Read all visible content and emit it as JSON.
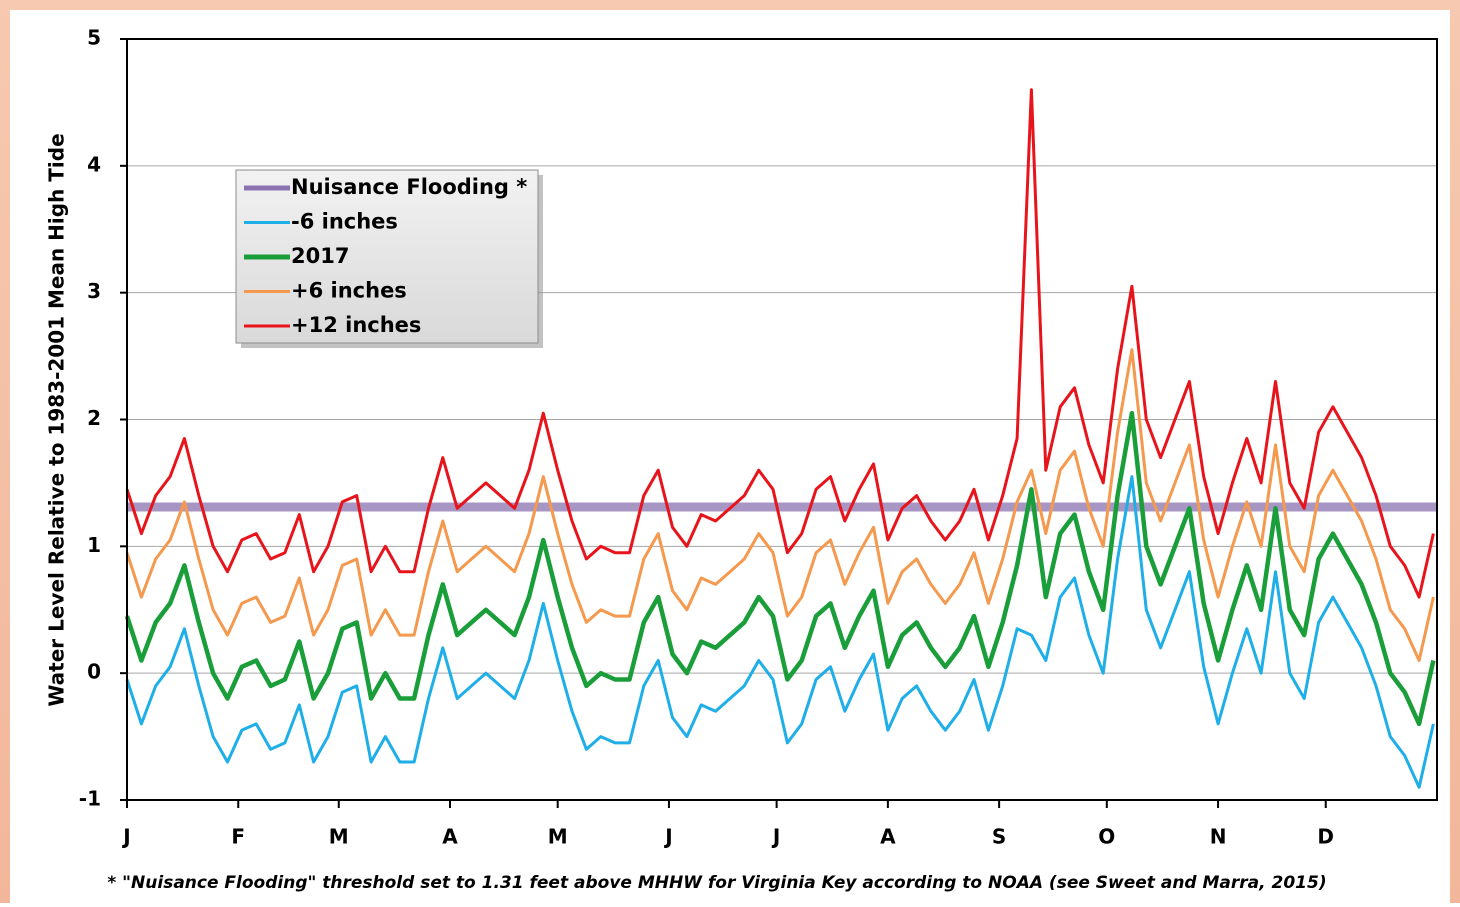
{
  "chart_data": {
    "type": "line",
    "y_label": "Water Level Relative to 1983-2001 Mean High Tide",
    "footnote": "* \"Nuisance Flooding\" threshold set to 1.31 feet above MHHW for Virginia Key according to NOAA (see Sweet and Marra, 2015)",
    "xlim": [
      1,
      366
    ],
    "xticks": [
      {
        "value": 1,
        "label": "J"
      },
      {
        "value": 32,
        "label": "F"
      },
      {
        "value": 60,
        "label": "M"
      },
      {
        "value": 91,
        "label": "A"
      },
      {
        "value": 121,
        "label": "M"
      },
      {
        "value": 152,
        "label": "J"
      },
      {
        "value": 182,
        "label": "J"
      },
      {
        "value": 213,
        "label": "A"
      },
      {
        "value": 244,
        "label": "S"
      },
      {
        "value": 274,
        "label": "O"
      },
      {
        "value": 305,
        "label": "N"
      },
      {
        "value": 335,
        "label": "D"
      }
    ],
    "ylim": [
      -1,
      5
    ],
    "yticks": [
      -1,
      0,
      1,
      2,
      3,
      4,
      5
    ],
    "grid": true,
    "legend": "upper left",
    "threshold": {
      "name": "Nuisance Flooding *",
      "value": 1.31,
      "color": "#8a73b0"
    },
    "x": [
      1,
      5,
      9,
      13,
      17,
      21,
      25,
      29,
      33,
      37,
      41,
      45,
      49,
      53,
      57,
      61,
      65,
      69,
      73,
      77,
      81,
      85,
      89,
      93,
      97,
      101,
      105,
      109,
      113,
      117,
      121,
      125,
      129,
      133,
      137,
      141,
      145,
      149,
      153,
      157,
      161,
      165,
      169,
      173,
      177,
      181,
      185,
      189,
      193,
      197,
      201,
      205,
      209,
      213,
      217,
      221,
      225,
      229,
      233,
      237,
      241,
      245,
      249,
      253,
      257,
      261,
      265,
      269,
      273,
      277,
      281,
      285,
      289,
      293,
      297,
      301,
      305,
      309,
      313,
      317,
      321,
      325,
      329,
      333,
      337,
      341,
      345,
      349,
      353,
      357,
      361,
      365
    ],
    "series": [
      {
        "name": "-6 inches",
        "color": "#1eaee8",
        "values": [
          -0.05,
          -0.4,
          -0.1,
          0.05,
          0.35,
          -0.1,
          -0.5,
          -0.7,
          -0.45,
          -0.4,
          -0.6,
          -0.55,
          -0.25,
          -0.7,
          -0.5,
          -0.15,
          -0.1,
          -0.7,
          -0.5,
          -0.7,
          -0.7,
          -0.2,
          0.2,
          -0.2,
          -0.1,
          0,
          -0.1,
          -0.2,
          0.1,
          0.55,
          0.1,
          -0.3,
          -0.6,
          -0.5,
          -0.55,
          -0.55,
          -0.1,
          0.1,
          -0.35,
          -0.5,
          -0.25,
          -0.3,
          -0.2,
          -0.1,
          0.1,
          -0.05,
          -0.55,
          -0.4,
          -0.05,
          0.05,
          -0.3,
          -0.05,
          0.15,
          -0.45,
          -0.2,
          -0.1,
          -0.3,
          -0.45,
          -0.3,
          -0.05,
          -0.45,
          -0.1,
          0.35,
          0.3,
          0.1,
          0.6,
          0.75,
          0.3,
          0,
          0.9,
          1.55,
          0.5,
          0.2,
          0.5,
          0.8,
          0.05,
          -0.4,
          0,
          0.35,
          0,
          0.8,
          0,
          -0.2,
          0.4,
          0.6,
          0.4,
          0.2,
          -0.1,
          -0.5,
          -0.65,
          -0.9,
          -0.4
        ]
      },
      {
        "name": "2017",
        "color": "#1a9e3a",
        "values": [
          0.45,
          0.1,
          0.4,
          0.55,
          0.85,
          0.4,
          0,
          -0.2,
          0.05,
          0.1,
          -0.1,
          -0.05,
          0.25,
          -0.2,
          0,
          0.35,
          0.4,
          -0.2,
          0,
          -0.2,
          -0.2,
          0.3,
          0.7,
          0.3,
          0.4,
          0.5,
          0.4,
          0.3,
          0.6,
          1.05,
          0.6,
          0.2,
          -0.1,
          0,
          -0.05,
          -0.05,
          0.4,
          0.6,
          0.15,
          0,
          0.25,
          0.2,
          0.3,
          0.4,
          0.6,
          0.45,
          -0.05,
          0.1,
          0.45,
          0.55,
          0.2,
          0.45,
          0.65,
          0.05,
          0.3,
          0.4,
          0.2,
          0.05,
          0.2,
          0.45,
          0.05,
          0.4,
          0.85,
          1.45,
          0.6,
          1.1,
          1.25,
          0.8,
          0.5,
          1.4,
          2.05,
          1.0,
          0.7,
          1.0,
          1.3,
          0.55,
          0.1,
          0.5,
          0.85,
          0.5,
          1.3,
          0.5,
          0.3,
          0.9,
          1.1,
          0.9,
          0.7,
          0.4,
          0,
          -0.15,
          -0.4,
          0.1
        ]
      },
      {
        "name": "+6 inches",
        "color": "#f4994e",
        "values": [
          0.95,
          0.6,
          0.9,
          1.05,
          1.35,
          0.9,
          0.5,
          0.3,
          0.55,
          0.6,
          0.4,
          0.45,
          0.75,
          0.3,
          0.5,
          0.85,
          0.9,
          0.3,
          0.5,
          0.3,
          0.3,
          0.8,
          1.2,
          0.8,
          0.9,
          1.0,
          0.9,
          0.8,
          1.1,
          1.55,
          1.1,
          0.7,
          0.4,
          0.5,
          0.45,
          0.45,
          0.9,
          1.1,
          0.65,
          0.5,
          0.75,
          0.7,
          0.8,
          0.9,
          1.1,
          0.95,
          0.45,
          0.6,
          0.95,
          1.05,
          0.7,
          0.95,
          1.15,
          0.55,
          0.8,
          0.9,
          0.7,
          0.55,
          0.7,
          0.95,
          0.55,
          0.9,
          1.35,
          1.6,
          1.1,
          1.6,
          1.75,
          1.3,
          1.0,
          1.9,
          2.55,
          1.5,
          1.2,
          1.5,
          1.8,
          1.05,
          0.6,
          1.0,
          1.35,
          1.0,
          1.8,
          1.0,
          0.8,
          1.4,
          1.6,
          1.4,
          1.2,
          0.9,
          0.5,
          0.35,
          0.1,
          0.6
        ]
      },
      {
        "name": "+12 inches",
        "color": "#e8141b",
        "values": [
          1.45,
          1.1,
          1.4,
          1.55,
          1.85,
          1.4,
          1.0,
          0.8,
          1.05,
          1.1,
          0.9,
          0.95,
          1.25,
          0.8,
          1.0,
          1.35,
          1.4,
          0.8,
          1.0,
          0.8,
          0.8,
          1.3,
          1.7,
          1.3,
          1.4,
          1.5,
          1.4,
          1.3,
          1.6,
          2.05,
          1.6,
          1.2,
          0.9,
          1.0,
          0.95,
          0.95,
          1.4,
          1.6,
          1.15,
          1.0,
          1.25,
          1.2,
          1.3,
          1.4,
          1.6,
          1.45,
          0.95,
          1.1,
          1.45,
          1.55,
          1.2,
          1.45,
          1.65,
          1.05,
          1.3,
          1.4,
          1.2,
          1.05,
          1.2,
          1.45,
          1.05,
          1.4,
          1.85,
          4.6,
          1.6,
          2.1,
          2.25,
          1.8,
          1.5,
          2.4,
          3.05,
          2.0,
          1.7,
          2.0,
          2.3,
          1.55,
          1.1,
          1.5,
          1.85,
          1.5,
          2.3,
          1.5,
          1.3,
          1.9,
          2.1,
          1.9,
          1.7,
          1.4,
          1.0,
          0.85,
          0.6,
          1.1
        ]
      }
    ]
  }
}
